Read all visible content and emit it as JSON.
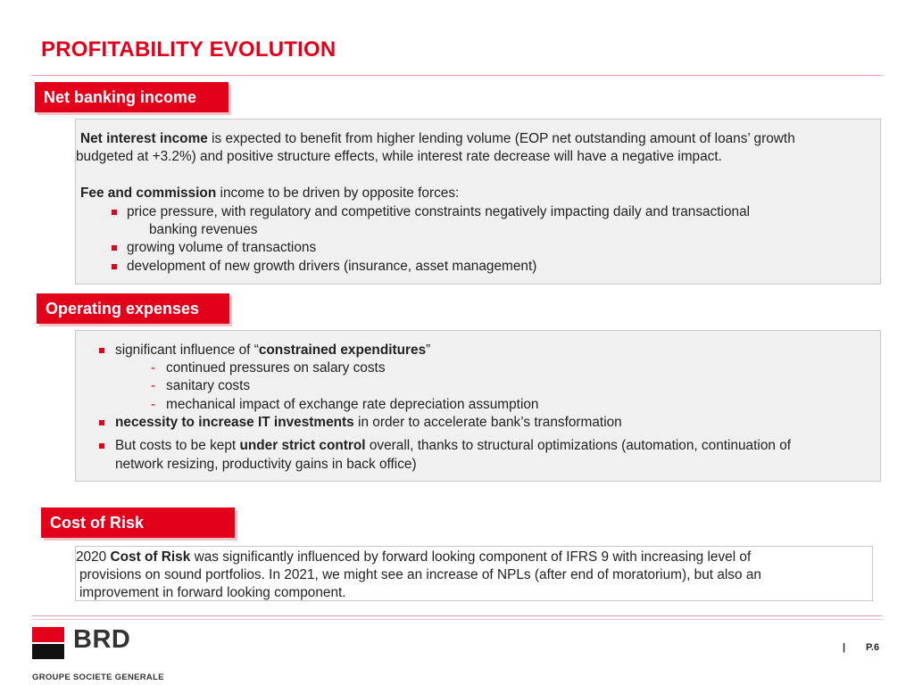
{
  "title": "PROFITABILITY EVOLUTION",
  "sections": {
    "nbi": {
      "heading": "Net banking income",
      "p1_bold": "Net interest income",
      "p1_rest": " is expected to benefit from higher lending volume (EOP net outstanding amount of loans’ growth",
      "p1_line2": "budgeted at +3.2%)  and positive structure effects, while interest rate decrease will have a negative impact.",
      "p2_bold": "Fee and commission",
      "p2_rest": " income to be driven by opposite forces:",
      "bullets": [
        "price pressure, with regulatory and competitive constraints negatively impacting daily and transactional",
        "growing volume of transactions",
        "development of new growth drivers (insurance, asset management)"
      ],
      "bullet1_cont": "banking revenues"
    },
    "opex": {
      "heading": "Operating expenses",
      "b1_pre": "significant influence of “",
      "b1_bold": "constrained expenditures",
      "b1_post": "”",
      "sub": [
        "continued pressures on salary costs",
        "sanitary costs",
        "mechanical impact of exchange rate depreciation assumption"
      ],
      "b2_bold": "necessity to increase IT investments",
      "b2_rest": " in order to accelerate bank’s transformation",
      "b3_pre": "But costs to be kept ",
      "b3_bold": "under strict control",
      "b3_rest": " overall, thanks to structural optimizations (automation, continuation of",
      "b3_line2": "network resizing, productivity gains in back office)"
    },
    "cor": {
      "heading": "Cost of Risk",
      "pre": "2020 ",
      "bold": "Cost of Risk",
      "rest": " was significantly influenced by forward looking component of IFRS 9 with increasing level of",
      "line2": "provisions on sound portfolios. In 2021, we might see an increase  of NPLs (after end of moratorium), but also an",
      "line3": "improvement in forward looking component."
    }
  },
  "footer": {
    "logo_text": "BRD",
    "group": "GROUPE SOCIETE GENERALE",
    "separator": "|",
    "page": "P.6"
  },
  "colors": {
    "accent": "#e2001a",
    "panel": "#f0f0f0"
  }
}
